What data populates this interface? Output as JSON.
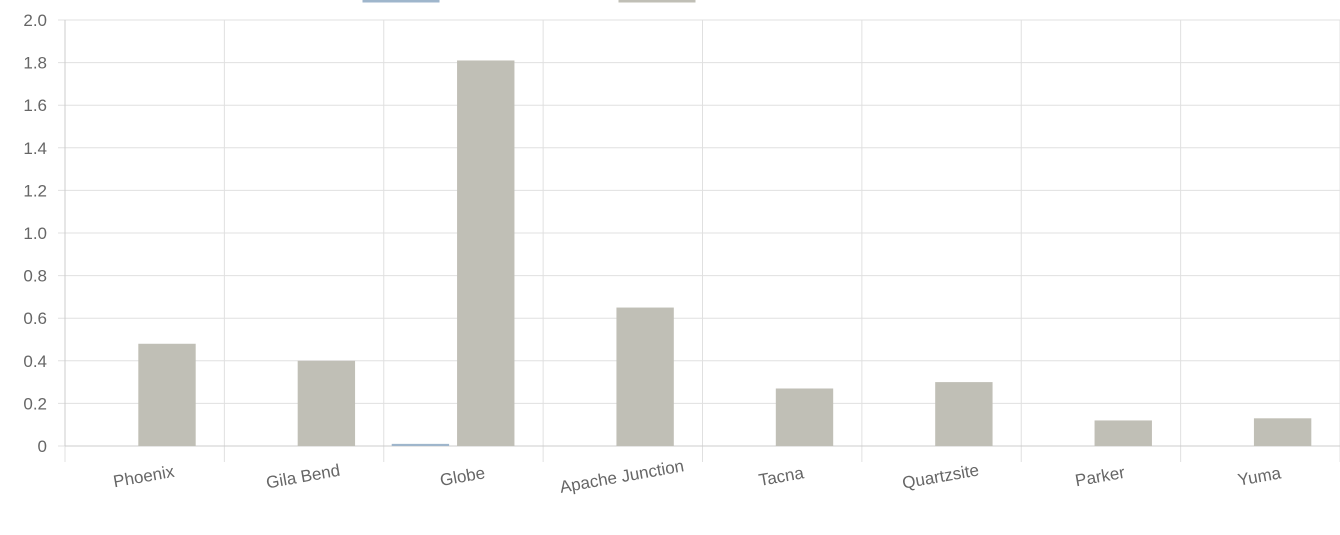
{
  "chart_data": {
    "type": "bar",
    "title": "",
    "xlabel": "",
    "ylabel": "",
    "categories": [
      "Phoenix",
      "Gila Bend",
      "Globe",
      "Apache Junction",
      "Tacna",
      "Quartzsite",
      "Parker",
      "Yuma"
    ],
    "series": [
      {
        "color": "#9fb6cc",
        "values": [
          0,
          0,
          0.01,
          0,
          0,
          0,
          0,
          0
        ]
      },
      {
        "color": "#c0bfb6",
        "values": [
          0.48,
          0.4,
          1.81,
          0.65,
          0.27,
          0.3,
          0.12,
          0.13
        ]
      }
    ],
    "ylim": [
      0,
      2.0
    ],
    "y_ticks": [
      "0",
      "0.2",
      "0.4",
      "0.6",
      "0.8",
      "1.0",
      "1.2",
      "1.4",
      "1.6",
      "1.8",
      "2.0"
    ],
    "grid": true,
    "legend_position": "top"
  }
}
